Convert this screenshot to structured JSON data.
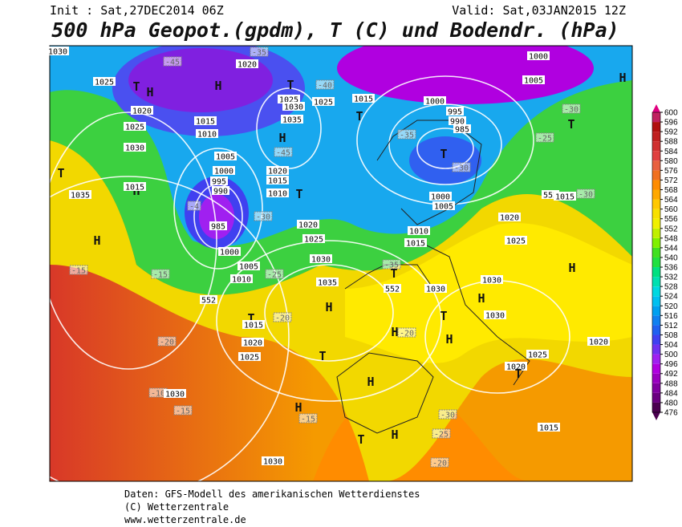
{
  "header": {
    "init": "Init : Sat,27DEC2014 06Z",
    "valid": "Valid: Sat,03JAN2015 12Z",
    "title": "500 hPa Geopot.(gpdm), T (C) und Bodendr. (hPa)"
  },
  "map_labels": [
    "1030",
    "1025",
    "1020",
    "1025",
    "1030",
    "1020",
    "-35",
    "-45",
    "T",
    "H",
    "H",
    "T",
    "1025",
    "1030",
    "1035",
    "1025",
    "-40",
    "1015",
    "T",
    "H",
    "-45",
    "1015",
    "1010",
    "1005",
    "1000",
    "995",
    "990",
    "-4",
    "985",
    "1020",
    "1015",
    "1010",
    "T",
    "-30",
    "1020",
    "1025",
    "1030",
    "1000",
    "1005",
    "1010",
    "-25",
    "552",
    "1035",
    "H",
    "T",
    "1015",
    "-20",
    "1020",
    "1025",
    "-20",
    "T",
    "H",
    "-10",
    "1030",
    "-15",
    "H",
    "-15",
    "T",
    "H",
    "1030",
    "1000",
    "1005",
    "H",
    "-30",
    "1000",
    "995",
    "990",
    "985",
    "-35",
    "T",
    "-30",
    "1000",
    "1005",
    "-25",
    "T",
    "552",
    "1015",
    "-30",
    "1020",
    "1025",
    "1010",
    "1015",
    "-35",
    "552",
    "H",
    "1030",
    "1030",
    "T",
    "H",
    "1030",
    "T",
    "H",
    "-20",
    "H",
    "1020",
    "1025",
    "1020",
    "T",
    "-30",
    "-25",
    "-20",
    "1015",
    "H",
    "H",
    "1035",
    "1015",
    "-15",
    "-15",
    "T"
  ],
  "colorbar": {
    "ticks": [
      476,
      480,
      484,
      488,
      492,
      496,
      500,
      504,
      508,
      512,
      516,
      520,
      524,
      528,
      532,
      536,
      540,
      544,
      548,
      552,
      556,
      560,
      564,
      568,
      572,
      576,
      580,
      584,
      588,
      592,
      596,
      600
    ],
    "colors": [
      "#4b0050",
      "#6a0080",
      "#8000a0",
      "#9a00c0",
      "#b000e0",
      "#a020f0",
      "#7030f0",
      "#4040f0",
      "#2060f0",
      "#1080f0",
      "#00a0f0",
      "#00c0f0",
      "#00d8e0",
      "#00e0b0",
      "#00e080",
      "#20e040",
      "#40e020",
      "#80f000",
      "#c0f000",
      "#f0f000",
      "#f8e000",
      "#ffc800",
      "#ffa800",
      "#ff8c00",
      "#f07020",
      "#e86040",
      "#e04040",
      "#d03030",
      "#c02020",
      "#b01010",
      "#c02060",
      "#e00080"
    ]
  },
  "footer": {
    "line1": "Daten: GFS-Modell des amerikanischen Wetterdienstes",
    "line2": "(C) Wetterzentrale",
    "line3": "www.wetterzentrale.de"
  }
}
